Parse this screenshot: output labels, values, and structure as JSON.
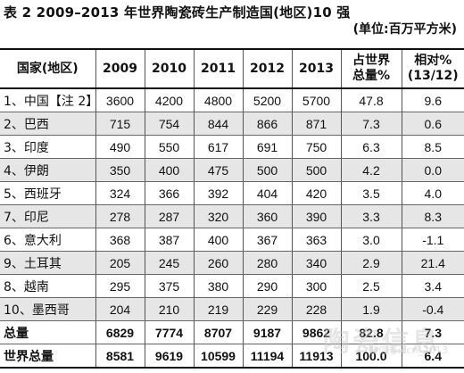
{
  "title": "表 2 2009–2013 年世界陶瓷砖生产制造国(地区)10 强",
  "unit": "(单位:百万平方米)",
  "headers": [
    "国家(地区)",
    "2009",
    "2010",
    "2011",
    "2012",
    "2013",
    "占世界\n总量%",
    "相对%\n(13/12)"
  ],
  "rows": [
    [
      "1、中国【注 2】",
      "3600",
      "4200",
      "4800",
      "5200",
      "5700",
      "47.8",
      "9.6"
    ],
    [
      "2、巴西",
      "715",
      "754",
      "844",
      "866",
      "871",
      "7.3",
      "0.6"
    ],
    [
      "3、印度",
      "490",
      "550",
      "617",
      "691",
      "750",
      "6.3",
      "8.5"
    ],
    [
      "4、伊朗",
      "350",
      "400",
      "475",
      "500",
      "500",
      "4.2",
      "0.0"
    ],
    [
      "5、西班牙",
      "324",
      "366",
      "392",
      "404",
      "420",
      "3.5",
      "4.0"
    ],
    [
      "7、印尼",
      "278",
      "287",
      "320",
      "360",
      "390",
      "3.3",
      "8.3"
    ],
    [
      "6、意大利",
      "368",
      "387",
      "400",
      "367",
      "363",
      "3.0",
      "-1.1"
    ],
    [
      "9、土耳其",
      "205",
      "245",
      "260",
      "280",
      "340",
      "2.9",
      "21.4"
    ],
    [
      "8、越南",
      "295",
      "375",
      "380",
      "290",
      "300",
      "2.5",
      "3.4"
    ],
    [
      "10、墨西哥",
      "204",
      "210",
      "219",
      "229",
      "228",
      "1.9",
      "-0.4"
    ]
  ],
  "total": [
    "总量",
    "6829",
    "7774",
    "8707",
    "9187",
    "9862",
    "82.8",
    "7.3"
  ],
  "world": [
    "世界总量",
    "8581",
    "9619",
    "10599",
    "11194",
    "11913",
    "100.0",
    "6.4"
  ],
  "watermark": "陶瓷信息",
  "watermark_sub": "微信号:ccn_2013"
}
